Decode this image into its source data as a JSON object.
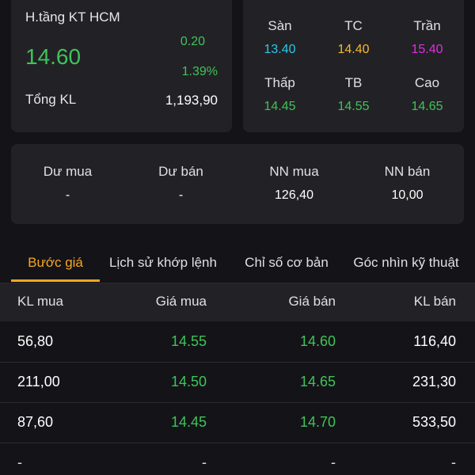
{
  "stock": {
    "exchange": "H.tầng KT HCM",
    "price": "14.60",
    "change": "0.20",
    "change_pct": "1.39%",
    "volume_label": "Tổng KL",
    "volume": "1,193,90"
  },
  "reference": [
    {
      "label": "Sàn",
      "value": "13.40",
      "color": "#2ec7e6"
    },
    {
      "label": "TC",
      "value": "14.40",
      "color": "#f5b82e"
    },
    {
      "label": "Trần",
      "value": "15.40",
      "color": "#e02de0"
    },
    {
      "label": "Thấp",
      "value": "14.45",
      "color": "#3fc35a"
    },
    {
      "label": "TB",
      "value": "14.55",
      "color": "#3fc35a"
    },
    {
      "label": "Cao",
      "value": "14.65",
      "color": "#3fc35a"
    }
  ],
  "flow": [
    {
      "label": "Dư mua",
      "value": "-"
    },
    {
      "label": "Dư bán",
      "value": "-"
    },
    {
      "label": "NN mua",
      "value": "126,40"
    },
    {
      "label": "NN bán",
      "value": "10,00"
    }
  ],
  "tabs": [
    {
      "label": "Bước giá",
      "active": true
    },
    {
      "label": "Lịch sử khớp lệnh",
      "active": false
    },
    {
      "label": "Chỉ số cơ bản",
      "active": false
    },
    {
      "label": "Góc nhìn kỹ thuật",
      "active": false
    }
  ],
  "table": {
    "headers": [
      "KL mua",
      "Giá mua",
      "Giá bán",
      "KL bán"
    ],
    "rows": [
      [
        "56,80",
        "14.55",
        "14.60",
        "116,40"
      ],
      [
        "211,00",
        "14.50",
        "14.65",
        "231,30"
      ],
      [
        "87,60",
        "14.45",
        "14.70",
        "533,50"
      ],
      [
        "-",
        "-",
        "-",
        "-"
      ]
    ]
  },
  "colors": {
    "up": "#3fc35a",
    "accent": "#f5a623",
    "floor": "#2ec7e6",
    "reference": "#f5b82e",
    "ceiling": "#e02de0"
  }
}
